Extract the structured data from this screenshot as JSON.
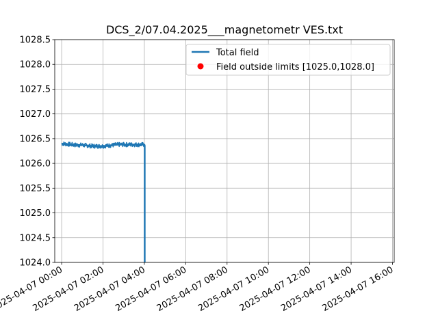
{
  "chart_data": {
    "type": "line",
    "title": "DCS_2/07.04.2025___magnetometr VES.txt",
    "xlabel": "",
    "ylabel": "",
    "xlim": [
      "2025-04-06T23:40",
      "2025-04-07T16:05"
    ],
    "ylim": [
      1024.0,
      1028.5
    ],
    "x_ticks": [
      {
        "t": "2025-04-07T00:00",
        "label": "2025-04-07 00:00"
      },
      {
        "t": "2025-04-07T02:00",
        "label": "2025-04-07 02:00"
      },
      {
        "t": "2025-04-07T04:00",
        "label": "2025-04-07 04:00"
      },
      {
        "t": "2025-04-07T06:00",
        "label": "2025-04-07 06:00"
      },
      {
        "t": "2025-04-07T08:00",
        "label": "2025-04-07 08:00"
      },
      {
        "t": "2025-04-07T10:00",
        "label": "2025-04-07 10:00"
      },
      {
        "t": "2025-04-07T12:00",
        "label": "2025-04-07 12:00"
      },
      {
        "t": "2025-04-07T14:00",
        "label": "2025-04-07 14:00"
      },
      {
        "t": "2025-04-07T16:00",
        "label": "2025-04-07 16:00"
      }
    ],
    "y_ticks": [
      {
        "v": 1024.0,
        "label": "1024.0"
      },
      {
        "v": 1024.5,
        "label": "1024.5"
      },
      {
        "v": 1025.0,
        "label": "1025.0"
      },
      {
        "v": 1025.5,
        "label": "1025.5"
      },
      {
        "v": 1026.0,
        "label": "1026.0"
      },
      {
        "v": 1026.5,
        "label": "1026.5"
      },
      {
        "v": 1027.0,
        "label": "1027.0"
      },
      {
        "v": 1027.5,
        "label": "1027.5"
      },
      {
        "v": 1028.0,
        "label": "1028.0"
      },
      {
        "v": 1028.5,
        "label": "1028.5"
      }
    ],
    "grid": true,
    "legend_position": "top-right",
    "series": [
      {
        "name": "Total field",
        "type": "line",
        "color": "#1f77b4",
        "x": [
          "2025-04-07T00:00",
          "2025-04-07T00:15",
          "2025-04-07T00:30",
          "2025-04-07T00:45",
          "2025-04-07T01:00",
          "2025-04-07T01:15",
          "2025-04-07T01:30",
          "2025-04-07T01:45",
          "2025-04-07T02:00",
          "2025-04-07T02:15",
          "2025-04-07T02:30",
          "2025-04-07T02:45",
          "2025-04-07T03:00",
          "2025-04-07T03:15",
          "2025-04-07T03:30",
          "2025-04-07T03:45",
          "2025-04-07T04:00",
          "2025-04-07T04:01",
          "2025-04-07T04:01"
        ],
        "y": [
          1026.4,
          1026.39,
          1026.38,
          1026.37,
          1026.37,
          1026.36,
          1026.35,
          1026.35,
          1026.35,
          1026.36,
          1026.37,
          1026.38,
          1026.38,
          1026.38,
          1026.38,
          1026.38,
          1026.38,
          1026.36,
          1024.0
        ]
      },
      {
        "name": "Field outside limits [1025.0,1028.0]",
        "type": "scatter",
        "color": "#ff0000",
        "x": [],
        "y": []
      }
    ]
  }
}
